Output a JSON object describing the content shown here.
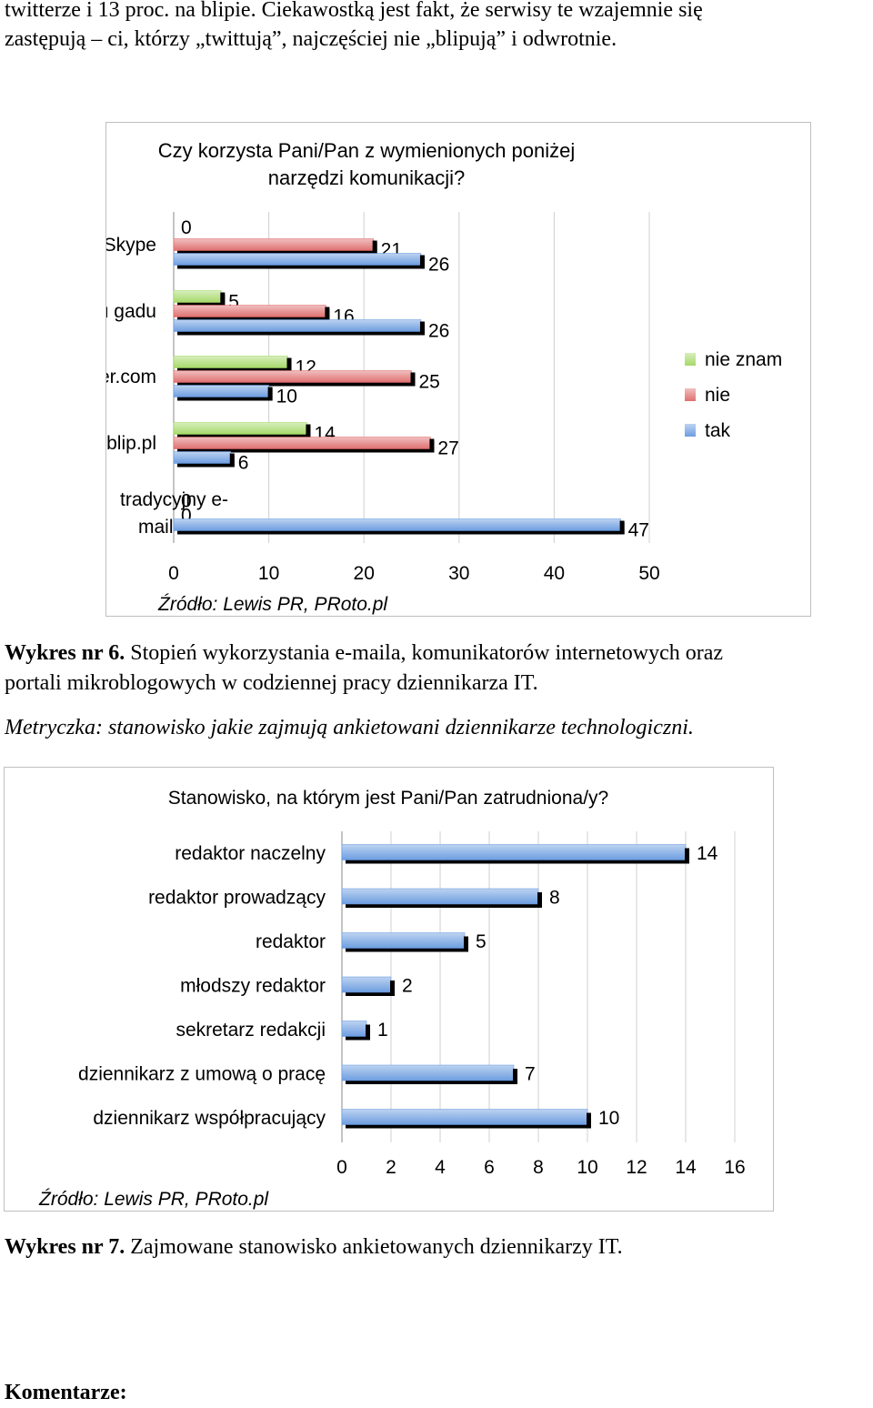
{
  "top_paragraph": {
    "line1": "twitterze i 13 proc. na blipie. Ciekawostką jest fakt, że serwisy te wzajemnie się",
    "line2": "zastępują – ci, którzy „twittują”, najczęściej nie „blipują” i odwrotnie."
  },
  "charts": [
    {
      "chart_data": {
        "type": "bar",
        "orientation": "horizontal",
        "title": "Czy korzysta Pani/Pan z  wymienionych poniżej narzędzi komunikacji?",
        "title_lines": [
          "Czy korzysta Pani/Pan z  wymienionych poniżej",
          "narzędzi komunikacji?"
        ],
        "categories": [
          "Skype",
          "gadu gadu",
          "twitter.com",
          "blip.pl",
          "tradycyjny e-mail"
        ],
        "category_lines": [
          [
            "Skype"
          ],
          [
            "gadu gadu"
          ],
          [
            "twitter.com"
          ],
          [
            "blip.pl"
          ],
          [
            "tradycyjny e-",
            "mail"
          ]
        ],
        "series": [
          {
            "name": "nie znam",
            "color": "#a6d96a",
            "values": [
              null,
              5,
              12,
              14,
              0
            ]
          },
          {
            "name": "nie",
            "color": "#e07070",
            "values": [
              21,
              16,
              25,
              27,
              0
            ]
          },
          {
            "name": "tak",
            "color": "#6d9de0",
            "values": [
              26,
              26,
              10,
              6,
              47
            ]
          }
        ],
        "extra_labels": [
          {
            "category": 0,
            "text": "0"
          }
        ],
        "xlim": [
          0,
          50
        ],
        "xticks": [
          "0",
          "10",
          "20",
          "30",
          "40",
          "50"
        ],
        "grid": true,
        "legend": "right",
        "source": "Źródło: Lewis PR, PRoto.pl"
      }
    },
    {
      "chart_data": {
        "type": "bar",
        "orientation": "horizontal",
        "title": "Stanowisko, na którym jest Pani/Pan zatrudniona/y?",
        "categories": [
          "redaktor naczelny",
          "redaktor prowadzący",
          "redaktor",
          "młodszy redaktor",
          "sekretarz redakcji",
          "dziennikarz z umową o pracę",
          "dziennikarz współpracujący"
        ],
        "series": [
          {
            "color": "#6d9de0",
            "values": [
              14,
              8,
              5,
              2,
              1,
              7,
              10
            ]
          }
        ],
        "xlim": [
          0,
          16
        ],
        "xticks": [
          "0",
          "2",
          "4",
          "6",
          "8",
          "10",
          "12",
          "14",
          "16"
        ],
        "grid": true,
        "source": "Źródło: Lewis PR, PRoto.pl"
      }
    }
  ],
  "caption6": {
    "label": "Wykres nr 6.",
    "line1": "Stopień wykorzystania e-maila, komunikatorów internetowych oraz",
    "line2": "portali mikroblogowych w codziennej pracy dziennikarza IT."
  },
  "metryczka": "Metryczka: stanowisko jakie zajmują ankietowani dziennikarze technologiczni.",
  "caption7": {
    "label": "Wykres nr 7.",
    "text": "Zajmowane stanowisko ankietowanych dziennikarzy IT."
  },
  "komentarze": "Komentarze:"
}
